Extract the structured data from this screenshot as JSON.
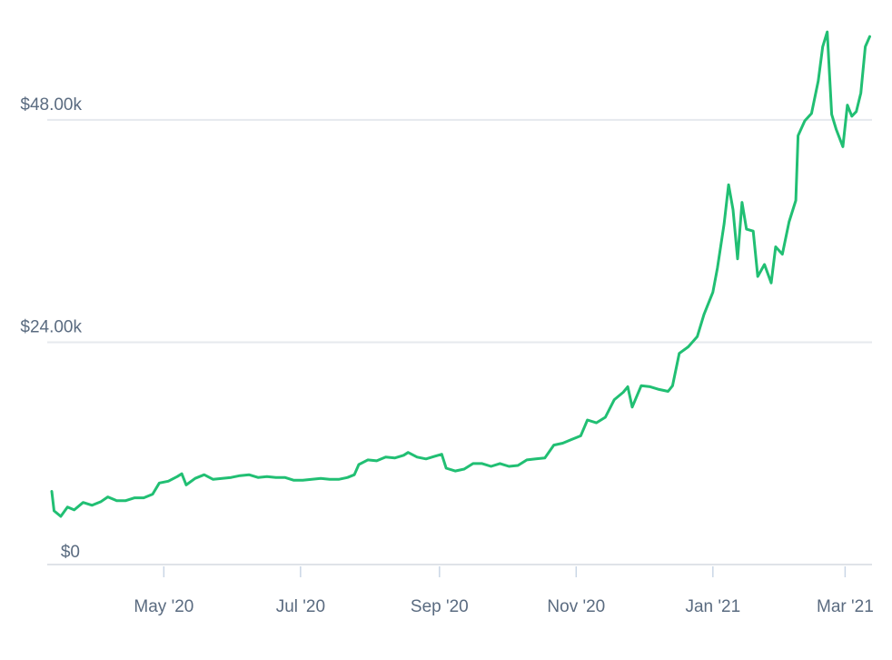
{
  "chart_data": {
    "type": "line",
    "title": "",
    "xlabel": "",
    "ylabel": "",
    "ylim": [
      0,
      58000
    ],
    "xlim": [
      "2020-03-12",
      "2021-03-13"
    ],
    "grid": "horizontal",
    "legend": "none",
    "line_color": "#21bf73",
    "y_ticks": [
      {
        "value": 0,
        "label": "$0"
      },
      {
        "value": 24000,
        "label": "$24.00k"
      },
      {
        "value": 48000,
        "label": "$48.00k"
      }
    ],
    "x_ticks": [
      {
        "date": "2020-05-01",
        "label": "May '20"
      },
      {
        "date": "2020-07-01",
        "label": "Jul '20"
      },
      {
        "date": "2020-09-01",
        "label": "Sep '20"
      },
      {
        "date": "2020-11-01",
        "label": "Nov '20"
      },
      {
        "date": "2021-01-01",
        "label": "Jan '21"
      },
      {
        "date": "2021-03-01",
        "label": "Mar '21"
      }
    ],
    "series": [
      {
        "points": [
          [
            "2020-03-12",
            7900
          ],
          [
            "2020-03-13",
            5800
          ],
          [
            "2020-03-16",
            5200
          ],
          [
            "2020-03-19",
            6200
          ],
          [
            "2020-03-22",
            5900
          ],
          [
            "2020-03-26",
            6700
          ],
          [
            "2020-03-30",
            6400
          ],
          [
            "2020-04-03",
            6800
          ],
          [
            "2020-04-06",
            7300
          ],
          [
            "2020-04-10",
            6900
          ],
          [
            "2020-04-14",
            6900
          ],
          [
            "2020-04-18",
            7200
          ],
          [
            "2020-04-22",
            7200
          ],
          [
            "2020-04-26",
            7600
          ],
          [
            "2020-04-29",
            8800
          ],
          [
            "2020-05-03",
            9000
          ],
          [
            "2020-05-07",
            9500
          ],
          [
            "2020-05-09",
            9800
          ],
          [
            "2020-05-11",
            8600
          ],
          [
            "2020-05-15",
            9300
          ],
          [
            "2020-05-19",
            9700
          ],
          [
            "2020-05-23",
            9200
          ],
          [
            "2020-05-27",
            9300
          ],
          [
            "2020-05-31",
            9400
          ],
          [
            "2020-06-04",
            9600
          ],
          [
            "2020-06-08",
            9700
          ],
          [
            "2020-06-12",
            9400
          ],
          [
            "2020-06-16",
            9500
          ],
          [
            "2020-06-20",
            9400
          ],
          [
            "2020-06-24",
            9400
          ],
          [
            "2020-06-28",
            9100
          ],
          [
            "2020-07-02",
            9100
          ],
          [
            "2020-07-06",
            9200
          ],
          [
            "2020-07-10",
            9300
          ],
          [
            "2020-07-14",
            9200
          ],
          [
            "2020-07-18",
            9200
          ],
          [
            "2020-07-22",
            9400
          ],
          [
            "2020-07-25",
            9700
          ],
          [
            "2020-07-27",
            10800
          ],
          [
            "2020-07-31",
            11300
          ],
          [
            "2020-08-04",
            11200
          ],
          [
            "2020-08-08",
            11600
          ],
          [
            "2020-08-12",
            11500
          ],
          [
            "2020-08-16",
            11800
          ],
          [
            "2020-08-18",
            12100
          ],
          [
            "2020-08-22",
            11600
          ],
          [
            "2020-08-26",
            11400
          ],
          [
            "2020-08-30",
            11700
          ],
          [
            "2020-09-02",
            11900
          ],
          [
            "2020-09-04",
            10400
          ],
          [
            "2020-09-08",
            10100
          ],
          [
            "2020-09-12",
            10300
          ],
          [
            "2020-09-16",
            10900
          ],
          [
            "2020-09-20",
            10900
          ],
          [
            "2020-09-24",
            10600
          ],
          [
            "2020-09-28",
            10900
          ],
          [
            "2020-10-02",
            10600
          ],
          [
            "2020-10-06",
            10700
          ],
          [
            "2020-10-10",
            11300
          ],
          [
            "2020-10-14",
            11400
          ],
          [
            "2020-10-18",
            11500
          ],
          [
            "2020-10-22",
            12900
          ],
          [
            "2020-10-26",
            13100
          ],
          [
            "2020-10-30",
            13500
          ],
          [
            "2020-11-03",
            13900
          ],
          [
            "2020-11-06",
            15600
          ],
          [
            "2020-11-10",
            15300
          ],
          [
            "2020-11-14",
            15900
          ],
          [
            "2020-11-18",
            17800
          ],
          [
            "2020-11-22",
            18600
          ],
          [
            "2020-11-24",
            19200
          ],
          [
            "2020-11-26",
            17000
          ],
          [
            "2020-11-30",
            19300
          ],
          [
            "2020-12-04",
            19200
          ],
          [
            "2020-12-08",
            18900
          ],
          [
            "2020-12-12",
            18700
          ],
          [
            "2020-12-14",
            19300
          ],
          [
            "2020-12-17",
            22800
          ],
          [
            "2020-12-21",
            23500
          ],
          [
            "2020-12-25",
            24600
          ],
          [
            "2020-12-28",
            27000
          ],
          [
            "2021-01-01",
            29400
          ],
          [
            "2021-01-03",
            32000
          ],
          [
            "2021-01-06",
            36800
          ],
          [
            "2021-01-08",
            41000
          ],
          [
            "2021-01-10",
            38300
          ],
          [
            "2021-01-12",
            33000
          ],
          [
            "2021-01-14",
            39100
          ],
          [
            "2021-01-16",
            36200
          ],
          [
            "2021-01-19",
            36000
          ],
          [
            "2021-01-21",
            31100
          ],
          [
            "2021-01-24",
            32400
          ],
          [
            "2021-01-27",
            30400
          ],
          [
            "2021-01-29",
            34300
          ],
          [
            "2021-02-01",
            33500
          ],
          [
            "2021-02-04",
            37000
          ],
          [
            "2021-02-07",
            39300
          ],
          [
            "2021-02-08",
            46300
          ],
          [
            "2021-02-11",
            47900
          ],
          [
            "2021-02-14",
            48700
          ],
          [
            "2021-02-17",
            52200
          ],
          [
            "2021-02-19",
            55900
          ],
          [
            "2021-02-21",
            57500
          ],
          [
            "2021-02-23",
            48600
          ],
          [
            "2021-02-25",
            47000
          ],
          [
            "2021-02-28",
            45100
          ],
          [
            "2021-03-02",
            49600
          ],
          [
            "2021-03-04",
            48400
          ],
          [
            "2021-03-06",
            48900
          ],
          [
            "2021-03-08",
            50900
          ],
          [
            "2021-03-10",
            55900
          ],
          [
            "2021-03-12",
            57000
          ]
        ]
      }
    ]
  }
}
